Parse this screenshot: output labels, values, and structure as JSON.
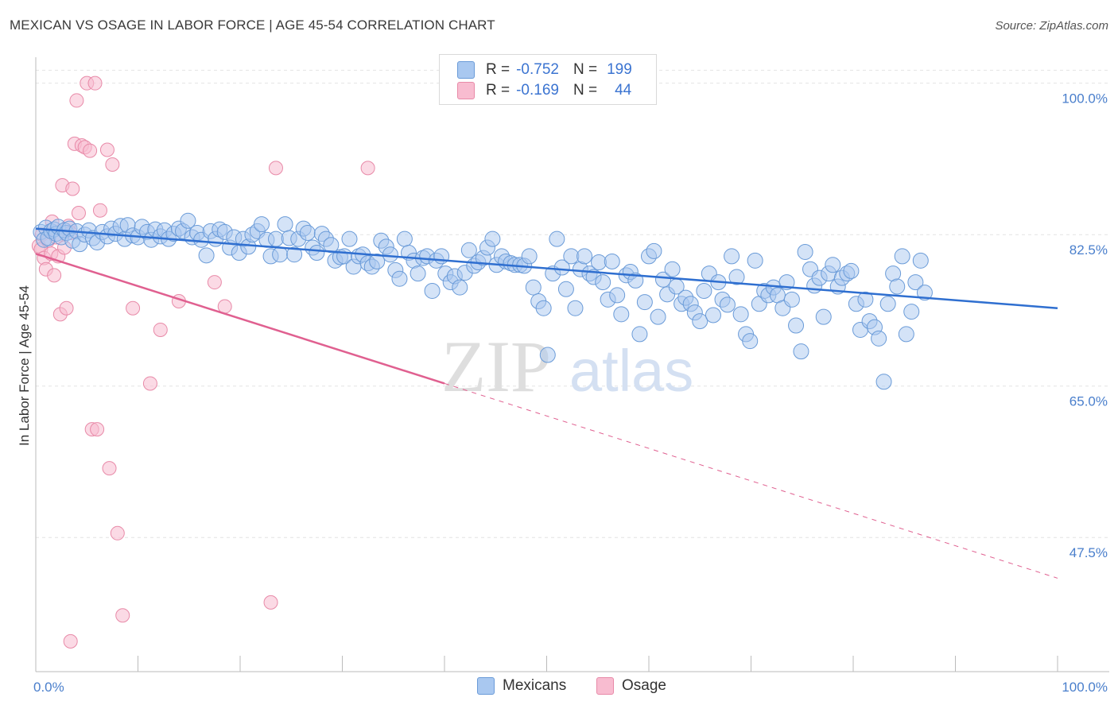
{
  "header": {
    "title": "MEXICAN VS OSAGE IN LABOR FORCE | AGE 45-54 CORRELATION CHART",
    "source": "Source: ZipAtlas.com"
  },
  "legend": {
    "rows": [
      {
        "r_label": "R =",
        "r_value": "-0.752",
        "n_label": "N =",
        "n_value": "199",
        "color": "#a9c8f0",
        "border": "#6a9bd8"
      },
      {
        "r_label": "R =",
        "r_value": "-0.169",
        "n_label": "N =",
        "n_value": "44",
        "color": "#f8bcd0",
        "border": "#e88aa8"
      }
    ]
  },
  "bottom_legend": {
    "mexicans": "Mexicans",
    "osage": "Osage"
  },
  "watermark": {
    "zip": "ZIP",
    "atlas": "atlas"
  },
  "chart_data": {
    "type": "scatter",
    "title": "MEXICAN VS OSAGE IN LABOR FORCE | AGE 45-54 CORRELATION CHART",
    "ylabel": "In Labor Force | Age 45-54",
    "xlabel": "",
    "xlim": [
      0,
      100
    ],
    "ylim": [
      32,
      103
    ],
    "x_tick_labels": [
      "0.0%",
      "100.0%"
    ],
    "y_ticks": [
      {
        "value": 100,
        "label": "100.0%"
      },
      {
        "value": 82.5,
        "label": "82.5%"
      },
      {
        "value": 65,
        "label": "65.0%"
      },
      {
        "value": 47.5,
        "label": "47.5%"
      }
    ],
    "colors": {
      "mexicans": "#a9c8f0",
      "mexicans_line": "#2f6fd0",
      "osage": "#f8bcd0",
      "osage_line": "#e06090"
    },
    "series": [
      {
        "name": "Mexicans",
        "trend": {
          "x0": 0,
          "y0": 83.2,
          "x1": 100,
          "y1": 74.0
        },
        "points": [
          [
            0.5,
            82.8
          ],
          [
            0.8,
            81.9
          ],
          [
            1.0,
            83.3
          ],
          [
            1.2,
            82.1
          ],
          [
            1.5,
            82.9
          ],
          [
            1.8,
            83.1
          ],
          [
            2.0,
            82.6
          ],
          [
            2.2,
            83.4
          ],
          [
            2.5,
            82.2
          ],
          [
            2.8,
            83.0
          ],
          [
            3.0,
            82.7
          ],
          [
            3.3,
            83.2
          ],
          [
            3.6,
            81.8
          ],
          [
            4.0,
            82.9
          ],
          [
            4.3,
            81.4
          ],
          [
            4.8,
            82.5
          ],
          [
            5.2,
            83.0
          ],
          [
            5.6,
            82.1
          ],
          [
            6.0,
            81.6
          ],
          [
            6.5,
            82.8
          ],
          [
            7.0,
            82.3
          ],
          [
            7.4,
            83.2
          ],
          [
            7.8,
            82.6
          ],
          [
            8.3,
            83.5
          ],
          [
            8.7,
            82.0
          ],
          [
            9.0,
            83.6
          ],
          [
            9.5,
            82.4
          ],
          [
            10.0,
            82.2
          ],
          [
            10.4,
            83.4
          ],
          [
            10.9,
            82.8
          ],
          [
            11.3,
            81.9
          ],
          [
            11.7,
            83.1
          ],
          [
            12.2,
            82.3
          ],
          [
            12.6,
            83.0
          ],
          [
            13.0,
            82.0
          ],
          [
            13.5,
            82.6
          ],
          [
            14.0,
            83.2
          ],
          [
            14.4,
            82.9
          ],
          [
            14.9,
            84.1
          ],
          [
            15.3,
            82.2
          ],
          [
            15.8,
            82.7
          ],
          [
            16.2,
            81.9
          ],
          [
            16.7,
            80.1
          ],
          [
            17.1,
            82.9
          ],
          [
            17.6,
            82.0
          ],
          [
            18.0,
            83.1
          ],
          [
            18.5,
            82.8
          ],
          [
            19.0,
            81.0
          ],
          [
            19.4,
            82.2
          ],
          [
            19.9,
            80.4
          ],
          [
            20.3,
            82.0
          ],
          [
            20.8,
            81.1
          ],
          [
            21.2,
            82.5
          ],
          [
            21.7,
            82.9
          ],
          [
            22.1,
            83.7
          ],
          [
            22.6,
            81.9
          ],
          [
            23.0,
            80.0
          ],
          [
            23.5,
            82.0
          ],
          [
            23.9,
            80.2
          ],
          [
            24.4,
            83.7
          ],
          [
            24.8,
            82.1
          ],
          [
            25.3,
            80.2
          ],
          [
            25.7,
            82.0
          ],
          [
            26.2,
            83.2
          ],
          [
            26.6,
            82.7
          ],
          [
            27.1,
            81.0
          ],
          [
            27.5,
            80.4
          ],
          [
            28.0,
            82.6
          ],
          [
            28.4,
            82.0
          ],
          [
            28.9,
            81.3
          ],
          [
            29.3,
            79.5
          ],
          [
            29.8,
            79.9
          ],
          [
            30.2,
            80.0
          ],
          [
            30.7,
            82.0
          ],
          [
            31.1,
            78.8
          ],
          [
            31.6,
            80.0
          ],
          [
            32.0,
            80.2
          ],
          [
            32.5,
            79.2
          ],
          [
            32.9,
            78.8
          ],
          [
            33.4,
            79.4
          ],
          [
            33.8,
            81.8
          ],
          [
            34.3,
            81.1
          ],
          [
            34.7,
            80.2
          ],
          [
            35.2,
            78.4
          ],
          [
            35.6,
            77.4
          ],
          [
            36.1,
            82.0
          ],
          [
            36.5,
            80.4
          ],
          [
            37.0,
            79.5
          ],
          [
            37.4,
            78.0
          ],
          [
            37.9,
            79.8
          ],
          [
            38.3,
            80.0
          ],
          [
            38.8,
            76.0
          ],
          [
            39.2,
            79.5
          ],
          [
            39.7,
            80.0
          ],
          [
            40.1,
            78.0
          ],
          [
            40.6,
            77.0
          ],
          [
            41.0,
            77.7
          ],
          [
            41.5,
            76.4
          ],
          [
            42.0,
            78.1
          ],
          [
            42.4,
            80.7
          ],
          [
            42.9,
            78.9
          ],
          [
            43.3,
            79.3
          ],
          [
            43.8,
            79.8
          ],
          [
            44.2,
            81.0
          ],
          [
            44.7,
            82.0
          ],
          [
            45.1,
            79.0
          ],
          [
            45.6,
            80.0
          ],
          [
            46.0,
            79.4
          ],
          [
            46.5,
            79.2
          ],
          [
            46.9,
            79.0
          ],
          [
            47.4,
            79.0
          ],
          [
            47.8,
            78.9
          ],
          [
            48.3,
            80.0
          ],
          [
            48.7,
            76.4
          ],
          [
            49.2,
            74.8
          ],
          [
            49.7,
            74.0
          ],
          [
            50.1,
            68.6
          ],
          [
            50.6,
            78.0
          ],
          [
            51.0,
            82.0
          ],
          [
            51.5,
            78.7
          ],
          [
            51.9,
            76.2
          ],
          [
            52.4,
            80.0
          ],
          [
            52.8,
            74.0
          ],
          [
            53.3,
            78.5
          ],
          [
            53.7,
            80.0
          ],
          [
            54.2,
            78.0
          ],
          [
            54.6,
            77.6
          ],
          [
            55.1,
            79.3
          ],
          [
            55.5,
            77.0
          ],
          [
            56.0,
            75.0
          ],
          [
            56.4,
            79.4
          ],
          [
            56.9,
            75.5
          ],
          [
            57.3,
            73.3
          ],
          [
            57.8,
            77.8
          ],
          [
            58.2,
            78.2
          ],
          [
            58.7,
            77.2
          ],
          [
            59.1,
            71.0
          ],
          [
            59.6,
            74.7
          ],
          [
            60.0,
            80.0
          ],
          [
            60.5,
            80.6
          ],
          [
            60.9,
            73.0
          ],
          [
            61.4,
            77.3
          ],
          [
            61.8,
            75.6
          ],
          [
            62.3,
            78.5
          ],
          [
            62.7,
            76.5
          ],
          [
            63.2,
            74.5
          ],
          [
            63.6,
            75.2
          ],
          [
            64.1,
            74.5
          ],
          [
            64.5,
            73.5
          ],
          [
            65.0,
            72.5
          ],
          [
            65.4,
            76.0
          ],
          [
            65.9,
            78.0
          ],
          [
            66.3,
            73.2
          ],
          [
            66.8,
            77.0
          ],
          [
            67.2,
            75.0
          ],
          [
            67.7,
            74.4
          ],
          [
            68.1,
            80.0
          ],
          [
            68.6,
            77.6
          ],
          [
            69.0,
            73.3
          ],
          [
            69.5,
            71.0
          ],
          [
            69.9,
            70.2
          ],
          [
            70.4,
            79.5
          ],
          [
            70.8,
            74.5
          ],
          [
            71.3,
            76.0
          ],
          [
            71.7,
            75.5
          ],
          [
            72.2,
            76.4
          ],
          [
            72.6,
            75.5
          ],
          [
            73.1,
            74.0
          ],
          [
            73.5,
            77.0
          ],
          [
            74.0,
            75.0
          ],
          [
            74.4,
            72.0
          ],
          [
            74.9,
            69.0
          ],
          [
            75.3,
            80.5
          ],
          [
            75.8,
            78.5
          ],
          [
            76.2,
            76.6
          ],
          [
            76.7,
            77.5
          ],
          [
            77.1,
            73.0
          ],
          [
            77.6,
            78.0
          ],
          [
            78.0,
            79.0
          ],
          [
            78.5,
            76.5
          ],
          [
            78.9,
            77.5
          ],
          [
            79.4,
            78.0
          ],
          [
            79.8,
            78.3
          ],
          [
            80.3,
            74.5
          ],
          [
            80.7,
            71.5
          ],
          [
            81.2,
            75.0
          ],
          [
            81.6,
            72.5
          ],
          [
            82.1,
            71.8
          ],
          [
            82.5,
            70.5
          ],
          [
            83.0,
            65.5
          ],
          [
            83.4,
            74.5
          ],
          [
            83.9,
            78.0
          ],
          [
            84.3,
            76.5
          ],
          [
            84.8,
            80.0
          ],
          [
            85.2,
            71.0
          ],
          [
            85.7,
            73.6
          ],
          [
            86.1,
            77.0
          ],
          [
            86.6,
            79.5
          ],
          [
            87.0,
            75.8
          ]
        ]
      },
      {
        "name": "Osage",
        "trend": {
          "x0": 0,
          "y0": 80.3,
          "x1": 40,
          "y1": 65.3,
          "dash_to_x": 100,
          "dash_to_y": 42.8
        },
        "points": [
          [
            0.3,
            81.2
          ],
          [
            0.5,
            80.8
          ],
          [
            0.6,
            82.5
          ],
          [
            0.8,
            79.8
          ],
          [
            1.0,
            78.5
          ],
          [
            1.2,
            81.8
          ],
          [
            1.5,
            80.3
          ],
          [
            1.6,
            84.0
          ],
          [
            1.8,
            77.8
          ],
          [
            2.0,
            82.2
          ],
          [
            2.2,
            80.0
          ],
          [
            2.4,
            73.3
          ],
          [
            2.6,
            88.2
          ],
          [
            2.8,
            81.0
          ],
          [
            3.0,
            74.0
          ],
          [
            3.2,
            83.5
          ],
          [
            3.4,
            82.7
          ],
          [
            3.6,
            87.8
          ],
          [
            3.8,
            93.0
          ],
          [
            4.0,
            98.0
          ],
          [
            4.2,
            85.0
          ],
          [
            4.5,
            92.8
          ],
          [
            4.8,
            92.6
          ],
          [
            5.0,
            100.0
          ],
          [
            5.3,
            92.2
          ],
          [
            5.5,
            60.0
          ],
          [
            5.8,
            100.0
          ],
          [
            6.0,
            60.0
          ],
          [
            6.3,
            85.3
          ],
          [
            7.0,
            92.3
          ],
          [
            7.2,
            55.5
          ],
          [
            7.5,
            90.6
          ],
          [
            8.0,
            48.0
          ],
          [
            8.5,
            38.5
          ],
          [
            9.5,
            74.0
          ],
          [
            11.2,
            65.3
          ],
          [
            12.2,
            71.5
          ],
          [
            14.0,
            74.8
          ],
          [
            17.5,
            77.0
          ],
          [
            18.5,
            74.2
          ],
          [
            23.0,
            40.0
          ],
          [
            23.5,
            90.2
          ],
          [
            32.5,
            90.2
          ],
          [
            3.4,
            35.5
          ]
        ]
      }
    ]
  }
}
